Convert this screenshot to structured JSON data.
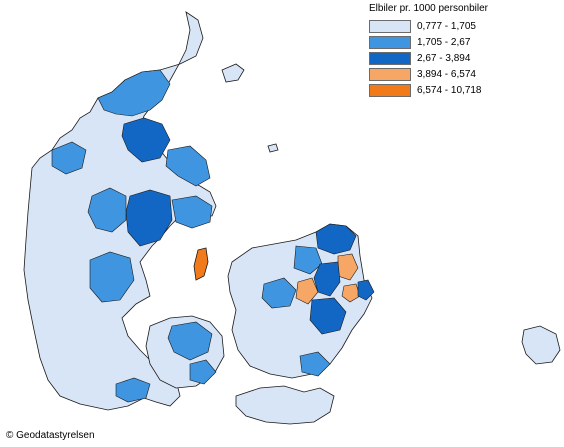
{
  "legend": {
    "title": "Elbiler pr. 1000 personbiler",
    "classes": [
      {
        "label": "0,777 - 1,705",
        "color": "#d7e5f7"
      },
      {
        "label": "1,705 - 2,67",
        "color": "#3f95e0"
      },
      {
        "label": "2,67 - 3,894",
        "color": "#1367c4"
      },
      {
        "label": "3,894 - 6,574",
        "color": "#f6a766"
      },
      {
        "label": "6,574 - 10,718",
        "color": "#f17a1a"
      }
    ]
  },
  "credit": "© Geodatastyrelsen",
  "map": {
    "outline_color": "#1a1a1a",
    "background": "#ffffff"
  }
}
